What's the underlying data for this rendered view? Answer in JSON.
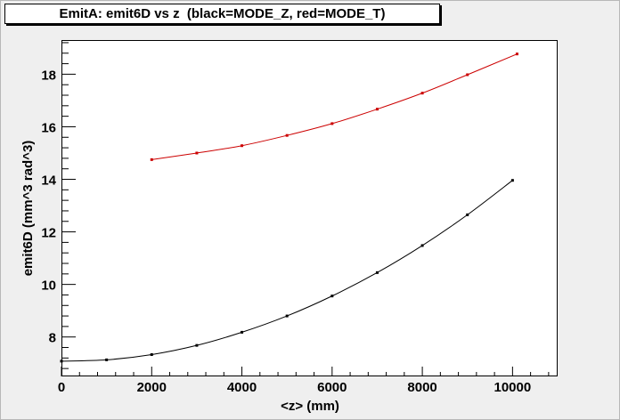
{
  "chart_data": {
    "type": "line",
    "title": "EmitA: emit6D vs z  (black=MODE_Z, red=MODE_T)",
    "xlabel": "<z>  (mm)",
    "ylabel": "emit6D  (mm^3 rad^3)",
    "xlim": [
      0,
      11000
    ],
    "ylim": [
      6.5,
      19.3
    ],
    "x_ticks": [
      0,
      2000,
      4000,
      6000,
      8000,
      10000
    ],
    "y_ticks": [
      8,
      10,
      12,
      14,
      16,
      18
    ],
    "x_tick_labels": [
      "0",
      "2000",
      "4000",
      "6000",
      "8000",
      "10000"
    ],
    "y_tick_labels": [
      "8",
      "10",
      "12",
      "14",
      "16",
      "18"
    ],
    "grid": false,
    "series": [
      {
        "color": "#000000",
        "x": [
          0,
          1000,
          2000,
          3000,
          4000,
          5000,
          6000,
          7000,
          8000,
          9000,
          10000
        ],
        "y": [
          7.08,
          7.13,
          7.33,
          7.68,
          8.18,
          8.8,
          9.56,
          10.45,
          11.48,
          12.65,
          13.96
        ]
      },
      {
        "color": "#cc0000",
        "x": [
          2000,
          3000,
          4000,
          5000,
          6000,
          7000,
          8000,
          9000,
          10100
        ],
        "y": [
          14.75,
          15.0,
          15.28,
          15.67,
          16.12,
          16.67,
          17.28,
          17.98,
          18.77
        ]
      }
    ]
  }
}
